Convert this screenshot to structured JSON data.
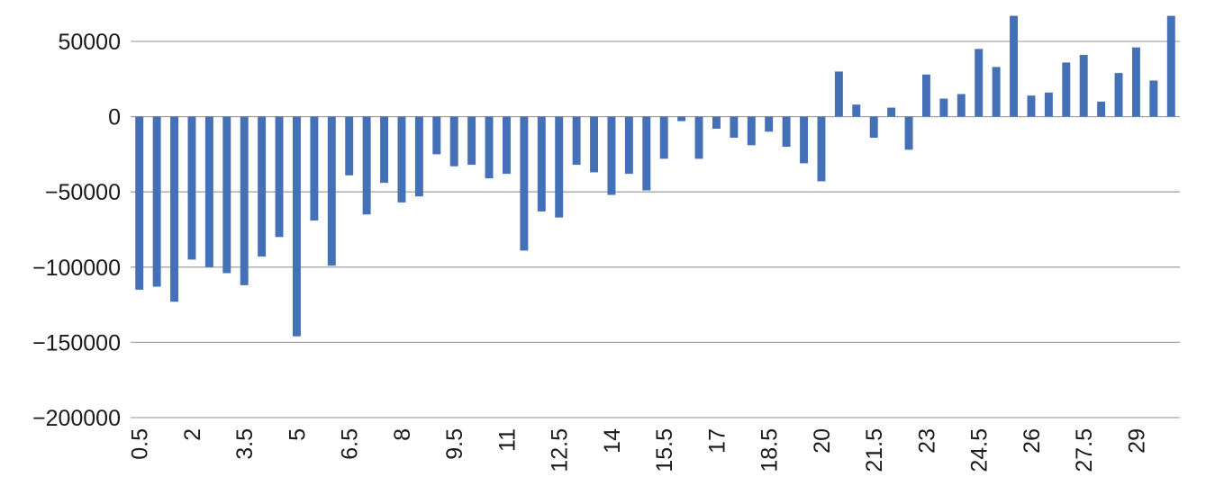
{
  "chart_data": {
    "type": "bar",
    "title": "",
    "xlabel": "",
    "ylabel": "",
    "x": [
      0.5,
      1,
      1.5,
      2,
      2.5,
      3,
      3.5,
      4,
      4.5,
      5,
      5.5,
      6,
      6.5,
      7,
      7.5,
      8,
      8.5,
      9,
      9.5,
      10,
      10.5,
      11,
      11.5,
      12,
      12.5,
      13,
      13.5,
      14,
      14.5,
      15,
      15.5,
      16,
      16.5,
      17,
      17.5,
      18,
      18.5,
      19,
      19.5,
      20,
      20.5,
      21,
      21.5,
      22,
      22.5,
      23,
      23.5,
      24,
      24.5,
      25,
      25.5,
      26,
      26.5,
      27,
      27.5,
      28,
      28.5,
      29,
      29.5,
      30
    ],
    "values": [
      -115000,
      -113000,
      -123000,
      -95000,
      -100000,
      -104000,
      -112000,
      -93000,
      -80000,
      -146000,
      -69000,
      -99000,
      -39000,
      -65000,
      -44000,
      -57000,
      -53000,
      -25000,
      -33000,
      -32000,
      -41000,
      -38000,
      -89000,
      -63000,
      -67000,
      -32000,
      -37000,
      -52000,
      -38000,
      -49000,
      -28000,
      -3000,
      -28000,
      -8000,
      -14000,
      -19000,
      -10000,
      -20000,
      -31000,
      -43000,
      30000,
      8000,
      -14000,
      6000,
      -22000,
      28000,
      12000,
      15000,
      45000,
      33000,
      67000,
      14000,
      16000,
      36000,
      41000,
      10000,
      29000,
      46000,
      24000,
      67000
    ],
    "x_tick_labels": [
      "0.5",
      "2",
      "3.5",
      "5",
      "6.5",
      "8",
      "9.5",
      "11",
      "12.5",
      "14",
      "15.5",
      "17",
      "18.5",
      "20",
      "21.5",
      "23",
      "24.5",
      "26",
      "27.5",
      "29"
    ],
    "y_tick_labels": [
      "50000",
      "0",
      "−50000",
      "−100000",
      "−150000",
      "−200000"
    ],
    "yticks": [
      50000,
      0,
      -50000,
      -100000,
      -150000,
      -200000
    ],
    "ylim": [
      -200000,
      50000
    ],
    "grid": true,
    "legend": "none",
    "bar_color": "#4470b8"
  }
}
